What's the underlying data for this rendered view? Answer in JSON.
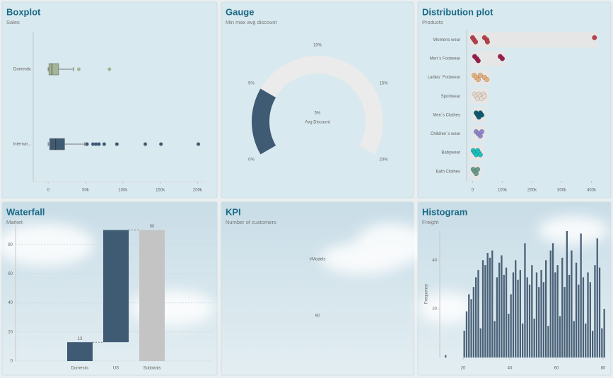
{
  "chart_data": [
    {
      "type": "boxplot",
      "title": "Boxplot",
      "subtitle": "Sales",
      "categories": [
        "Domestic",
        "Internat..."
      ],
      "boxes": [
        {
          "min": 0,
          "q1": 1000,
          "median": 5000,
          "q3": 14000,
          "max": 34000,
          "outliers": [
            41000,
            82000
          ],
          "color": "#a4b596"
        },
        {
          "min": 0,
          "q1": 2000,
          "median": 10000,
          "q3": 22000,
          "max": 49000,
          "outliers": [
            52000,
            60000,
            64000,
            68000,
            75000,
            92000,
            130000,
            151000,
            201000
          ],
          "color": "#3f5a73"
        }
      ],
      "xlim": [
        -20000,
        210000
      ],
      "xticks": [
        0,
        {
          "value": 50000,
          "label": "50k"
        },
        {
          "value": 100000,
          "label": "100k"
        },
        {
          "value": 150000,
          "label": "150k"
        },
        {
          "value": 200000,
          "label": "200k"
        }
      ]
    },
    {
      "type": "gauge",
      "title": "Gauge",
      "subtitle": "Min max avg discount",
      "value": 5,
      "value_label": "5%",
      "label": "Avg Discount",
      "lim": [
        0,
        20
      ],
      "ticks": [
        {
          "value": 0,
          "label": "0%"
        },
        {
          "value": 5,
          "label": "5%"
        },
        {
          "value": 10,
          "label": "10%"
        },
        {
          "value": 15,
          "label": "15%"
        },
        {
          "value": 20,
          "label": "20%"
        }
      ],
      "color": "#3f5a73",
      "track_color": "#ebebeb"
    },
    {
      "type": "distribution",
      "title": "Distribution plot",
      "subtitle": "Products",
      "categories": [
        "Womens wear",
        "Men´s Footwear",
        "Ladies´ Footwear",
        "Sportwear",
        "Men´s Clothes",
        "Children´s wear",
        "Babywear",
        "Bath Clothes"
      ],
      "values": [
        [
          0,
          5000,
          10000,
          40000,
          48000,
          50000,
          410000
        ],
        [
          7000,
          14000,
          19000,
          93000,
          100000
        ],
        [
          5000,
          12000,
          19000,
          26000,
          40000,
          48000
        ],
        [
          7000,
          12000,
          17000,
          21000,
          26000,
          31000,
          36000,
          40000
        ],
        [
          12000,
          17000,
          21000,
          26000,
          31000
        ],
        [
          12000,
          19000,
          26000,
          31000
        ],
        [
          2000,
          7000,
          12000,
          17000,
          21000,
          26000
        ],
        [
          2000,
          7000,
          12000,
          17000
        ]
      ],
      "colors": [
        "#b8404a",
        "#9b1d4f",
        "#e6b27c",
        "#e9dbcf",
        "#0f5c73",
        "#8f86c9",
        "#1fbfbf",
        "#6a9c8c"
      ],
      "xlim": [
        -20000,
        420000
      ],
      "xticks": [
        0,
        {
          "value": 100000,
          "label": "100k"
        },
        {
          "value": 200000,
          "label": "200k"
        },
        {
          "value": 300000,
          "label": "300k"
        },
        {
          "value": 400000,
          "label": "400k"
        }
      ]
    },
    {
      "type": "waterfall",
      "title": "Waterfall",
      "subtitle": "Market",
      "categories": [
        "Domestic",
        "US",
        "Subtotals"
      ],
      "values": [
        13,
        77,
        90
      ],
      "value_labels": [
        "13",
        null,
        "90"
      ],
      "measures": [
        "relative",
        "relative",
        "total"
      ],
      "colors": [
        "#3f5a73",
        "#3f5a73",
        "#c4c4c4"
      ],
      "ylim": [
        0,
        100
      ],
      "yticks": [
        0,
        20,
        40,
        60,
        80
      ],
      "grid": true
    },
    {
      "type": "kpi",
      "title": "KPI",
      "subtitle": "Number of customers",
      "label": "#Models",
      "value": 90,
      "color": "#3f5a73"
    },
    {
      "type": "histogram",
      "title": "Histogram",
      "subtitle": "Freight",
      "ylabel": "Frequency",
      "bins": [
        12,
        13,
        14,
        15,
        16,
        17,
        18,
        19,
        20,
        21,
        22,
        23,
        24,
        25,
        26,
        27,
        28,
        29,
        30,
        31,
        32,
        33,
        34,
        35,
        36,
        37,
        38,
        39,
        40,
        41,
        42,
        43,
        44,
        45,
        46,
        47,
        48,
        49,
        50,
        51,
        52,
        53,
        54,
        55,
        56,
        57,
        58,
        59,
        60,
        61,
        62,
        63,
        64,
        65,
        66,
        67,
        68,
        69,
        70,
        71,
        72,
        73,
        74,
        75,
        76,
        77,
        78,
        79,
        80,
        81
      ],
      "counts": [
        1,
        0,
        0,
        0,
        0,
        0,
        0,
        0,
        11,
        19,
        26,
        24,
        29,
        33,
        36,
        12,
        40,
        38,
        43,
        41,
        44,
        15,
        33,
        39,
        42,
        34,
        37,
        18,
        26,
        35,
        40,
        32,
        36,
        14,
        47,
        33,
        30,
        38,
        16,
        35,
        29,
        36,
        31,
        40,
        13,
        44,
        47,
        35,
        38,
        17,
        41,
        29,
        52,
        34,
        44,
        15,
        39,
        30,
        51,
        33,
        14,
        35,
        31,
        11,
        38,
        49,
        37,
        12,
        20
      ],
      "color": "#4a6178",
      "xlim": [
        10,
        82
      ],
      "xticks": [
        20,
        40,
        60,
        80
      ],
      "ylim": [
        0,
        52
      ],
      "yticks": [
        20,
        40
      ]
    }
  ]
}
